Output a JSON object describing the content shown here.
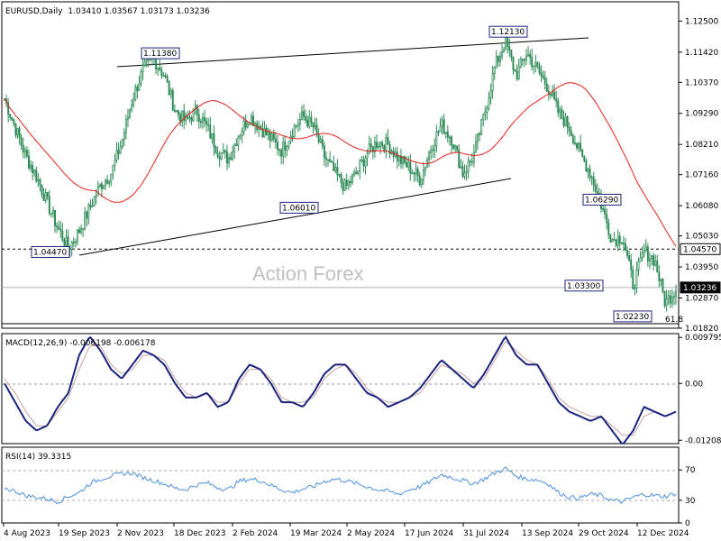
{
  "chart_data": [
    {
      "type": "candlestick",
      "title": "EURUSD,Daily",
      "ohlc_header": "1.03410 1.03567 1.03173 1.03236",
      "watermark": "Action Forex",
      "ylim": [
        1.0182,
        1.1317
      ],
      "y_ticks": [
        "1.12500",
        "1.11420",
        "1.10370",
        "1.09290",
        "1.08210",
        "1.07160",
        "1.06080",
        "1.05030",
        "1.03950",
        "1.02870",
        "1.01820"
      ],
      "x_ticks": [
        "4 Aug 2023",
        "19 Sep 2023",
        "2 Nov 2023",
        "18 Dec 2023",
        "2 Feb 2024",
        "19 Mar 2024",
        "2 May 2024",
        "17 Jun 2024",
        "31 Jul 2024",
        "13 Sep 2024",
        "29 Oct 2024",
        "12 Dec 2024"
      ],
      "current_price": "1.03236",
      "level_line": "1.04570",
      "price_labels": [
        "1.11380",
        "1.12130",
        "1.06010",
        "1.04470",
        "1.06290",
        "1.03300",
        "1.02230"
      ],
      "fib_label": "61.8",
      "moving_average": "red",
      "colors": {
        "candles": "#2e8b57",
        "ma": "#e8201c",
        "trendlines": "#000000"
      },
      "close_anchors": [
        1.098,
        1.088,
        1.078,
        1.071,
        1.062,
        1.053,
        1.046,
        1.052,
        1.06,
        1.068,
        1.072,
        1.083,
        1.098,
        1.108,
        1.112,
        1.106,
        1.094,
        1.09,
        1.094,
        1.088,
        1.08,
        1.077,
        1.086,
        1.092,
        1.088,
        1.084,
        1.08,
        1.087,
        1.092,
        1.088,
        1.078,
        1.072,
        1.067,
        1.072,
        1.079,
        1.083,
        1.082,
        1.077,
        1.074,
        1.07,
        1.081,
        1.089,
        1.084,
        1.072,
        1.078,
        1.092,
        1.109,
        1.118,
        1.106,
        1.114,
        1.108,
        1.102,
        1.093,
        1.088,
        1.079,
        1.072,
        1.061,
        1.049,
        1.05,
        1.033,
        1.045,
        1.042,
        1.027,
        1.032
      ]
    },
    {
      "type": "line",
      "title": "MACD(12,26,9) -0.006198 -0.006178",
      "ylim": [
        -0.0128,
        0.0106
      ],
      "y_ticks": [
        "0.009795",
        "0.00",
        "-0.012081"
      ],
      "series": [
        {
          "name": "MACD",
          "color": "#1a237e",
          "anchors": [
            0.0,
            -0.004,
            -0.008,
            -0.01,
            -0.009,
            -0.005,
            -0.002,
            0.006,
            0.01,
            0.007,
            0.003,
            0.001,
            0.004,
            0.007,
            0.006,
            0.004,
            0.0,
            -0.003,
            -0.003,
            -0.002,
            -0.005,
            -0.004,
            0.001,
            0.004,
            0.003,
            0.0,
            -0.004,
            -0.004,
            -0.005,
            -0.002,
            0.002,
            0.004,
            0.004,
            0.001,
            -0.002,
            -0.003,
            -0.005,
            -0.004,
            -0.003,
            -0.001,
            0.002,
            0.005,
            0.003,
            0.001,
            -0.001,
            0.002,
            0.006,
            0.01,
            0.006,
            0.004,
            0.004,
            0.0,
            -0.004,
            -0.006,
            -0.007,
            -0.008,
            -0.007,
            -0.01,
            -0.013,
            -0.01,
            -0.005,
            -0.006,
            -0.007,
            -0.006
          ]
        },
        {
          "name": "Signal",
          "color": "#c8a0a0",
          "anchors": [
            0.001,
            -0.002,
            -0.006,
            -0.009,
            -0.009,
            -0.006,
            -0.003,
            0.003,
            0.008,
            0.008,
            0.004,
            0.002,
            0.003,
            0.006,
            0.006,
            0.005,
            0.001,
            -0.002,
            -0.003,
            -0.002,
            -0.004,
            -0.004,
            0.0,
            0.003,
            0.003,
            0.001,
            -0.003,
            -0.004,
            -0.004,
            -0.003,
            0.001,
            0.003,
            0.004,
            0.002,
            -0.001,
            -0.003,
            -0.004,
            -0.004,
            -0.003,
            -0.002,
            0.001,
            0.004,
            0.003,
            0.002,
            0.0,
            0.001,
            0.005,
            0.009,
            0.007,
            0.005,
            0.004,
            0.001,
            -0.003,
            -0.005,
            -0.006,
            -0.007,
            -0.007,
            -0.009,
            -0.011,
            -0.011,
            -0.007,
            -0.006,
            -0.007,
            -0.006
          ]
        }
      ]
    },
    {
      "type": "line",
      "title": "RSI(14) 39.3315",
      "ylim": [
        0,
        100
      ],
      "y_ticks": [
        "70",
        "30",
        "0"
      ],
      "series": [
        {
          "name": "RSI(14)",
          "color": "#4a90e2",
          "anchors": [
            46,
            42,
            36,
            34,
            32,
            28,
            35,
            40,
            52,
            58,
            62,
            65,
            66,
            60,
            56,
            52,
            46,
            44,
            50,
            53,
            47,
            44,
            55,
            58,
            56,
            50,
            44,
            40,
            45,
            48,
            55,
            58,
            56,
            52,
            48,
            44,
            42,
            38,
            44,
            48,
            55,
            64,
            60,
            56,
            52,
            58,
            66,
            72,
            62,
            58,
            57,
            52,
            40,
            34,
            33,
            38,
            36,
            30,
            28,
            34,
            38,
            36,
            35,
            39
          ]
        }
      ]
    }
  ]
}
